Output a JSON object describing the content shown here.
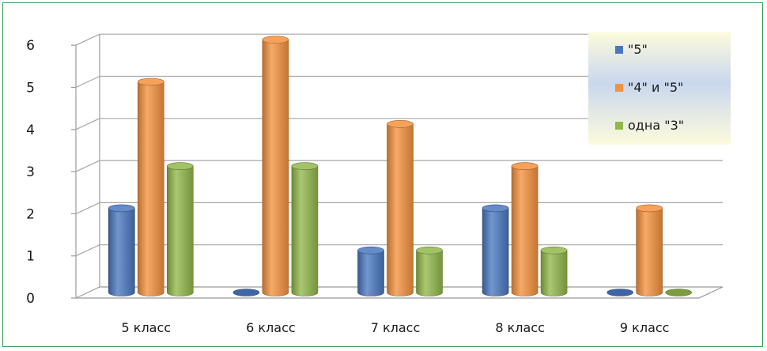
{
  "chart_data": {
    "type": "bar",
    "categories": [
      "5 класс",
      "6 класс",
      "7 класс",
      "8 класс",
      "9 класс"
    ],
    "series": [
      {
        "name": "\"5\"",
        "values": [
          2,
          0,
          1,
          2,
          0
        ],
        "color": "#4a78c0"
      },
      {
        "name": "\"4\" и \"5\"",
        "values": [
          5,
          6,
          4,
          3,
          2
        ],
        "color": "#f5923e"
      },
      {
        "name": "одна \"3\"",
        "values": [
          3,
          3,
          1,
          1,
          0
        ],
        "color": "#92b84a"
      }
    ],
    "yticks": [
      0,
      1,
      2,
      3,
      4,
      5,
      6
    ],
    "ylim": [
      0,
      6
    ],
    "grid": true,
    "legend_position": "top-right",
    "style": "3d-cylinder"
  }
}
